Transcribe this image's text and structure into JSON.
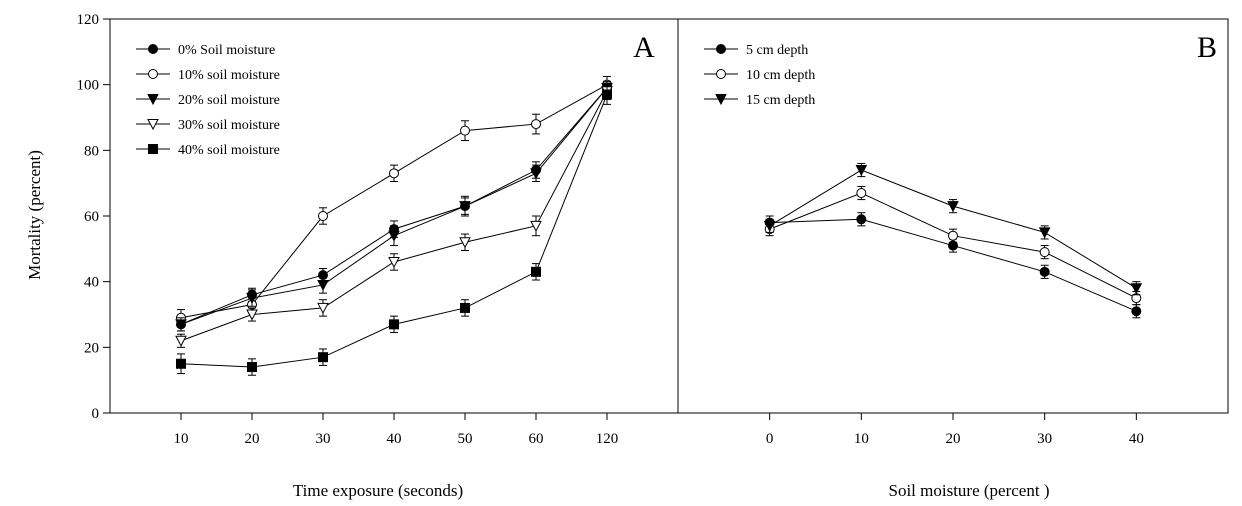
{
  "chart_data": {
    "type": "line",
    "ylabel": "Mortality (percent)",
    "ylim": [
      0,
      120
    ],
    "yticks": [
      0,
      20,
      40,
      60,
      80,
      100,
      120
    ],
    "grid": false,
    "panels": [
      {
        "panel_label": "A",
        "xlabel": "Time exposure (seconds)",
        "categories": [
          "10",
          "20",
          "30",
          "40",
          "50",
          "60",
          "120"
        ],
        "legend_position": "top-left",
        "series": [
          {
            "name": "0% Soil moisture",
            "marker": "filled-circle",
            "values": [
              27,
              36,
              42,
              56,
              63,
              74,
              99
            ],
            "errors": [
              2,
              2,
              2,
              2.5,
              2.5,
              2.5,
              2
            ]
          },
          {
            "name": "10% soil moisture",
            "marker": "open-circle",
            "values": [
              29,
              33,
              60,
              73,
              86,
              88,
              100
            ],
            "errors": [
              2.5,
              2,
              2.5,
              2.5,
              3,
              3,
              2.5
            ]
          },
          {
            "name": "20% soil moisture",
            "marker": "filled-triangle-down",
            "values": [
              27,
              35,
              39,
              54,
              63,
              73,
              99
            ],
            "errors": [
              2,
              2.5,
              2.5,
              3,
              3,
              2.5,
              2
            ]
          },
          {
            "name": "30% soil moisture",
            "marker": "open-triangle-down",
            "values": [
              22,
              30,
              32,
              46,
              52,
              57,
              98
            ],
            "errors": [
              2,
              2,
              2.5,
              2.5,
              2.5,
              3,
              2.5
            ]
          },
          {
            "name": "40% soil moisture",
            "marker": "filled-square",
            "values": [
              15,
              14,
              17,
              27,
              32,
              43,
              97
            ],
            "errors": [
              3,
              2.5,
              2.5,
              2.5,
              2.5,
              2.5,
              3
            ]
          }
        ]
      },
      {
        "panel_label": "B",
        "xlabel": "Soil moisture (percent )",
        "categories": [
          "0",
          "10",
          "20",
          "30",
          "40"
        ],
        "legend_position": "top-left",
        "series": [
          {
            "name": "5 cm depth",
            "marker": "filled-circle",
            "values": [
              58,
              59,
              51,
              43,
              31
            ],
            "errors": [
              2,
              2,
              2,
              2,
              2
            ]
          },
          {
            "name": "10 cm depth",
            "marker": "open-circle",
            "values": [
              56,
              67,
              54,
              49,
              35
            ],
            "errors": [
              2,
              2,
              2,
              2,
              2
            ]
          },
          {
            "name": "15 cm depth",
            "marker": "filled-triangle-down",
            "values": [
              57,
              74,
              63,
              55,
              38
            ],
            "errors": [
              2,
              2,
              2,
              2,
              2
            ]
          }
        ]
      }
    ]
  }
}
